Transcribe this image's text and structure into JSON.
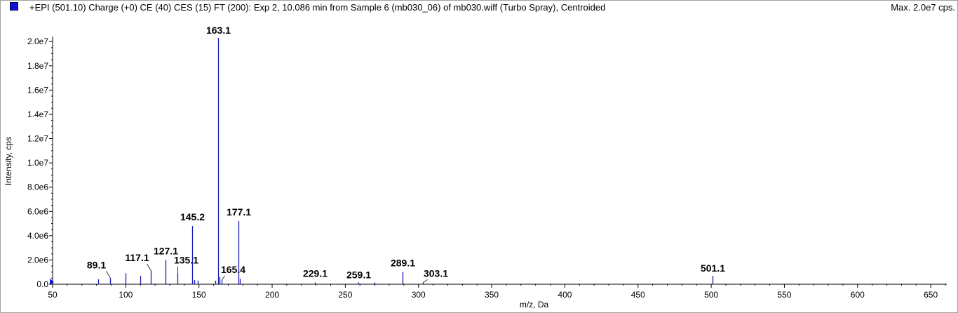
{
  "header": {
    "title": "+EPI (501.10) Charge (+0) CE (40) CES (15) FT (200): Exp 2, 10.086 min from Sample 6 (mb030_06) of mb030.wiff (Turbo Spray), Centroided",
    "max": "Max. 2.0e7 cps."
  },
  "colors": {
    "series": "#1a1ab8",
    "axis": "#000000",
    "frame": "#a0a0a0"
  },
  "chart_data": {
    "type": "bar",
    "xlabel": "m/z, Da",
    "ylabel": "Intensity, cps",
    "xlim": [
      50,
      660
    ],
    "ylim": [
      0,
      20300000
    ],
    "x_ticks": [
      50,
      100,
      150,
      200,
      250,
      300,
      350,
      400,
      450,
      500,
      550,
      600,
      650
    ],
    "y_ticks": [
      {
        "value": 0,
        "label": "0.0"
      },
      {
        "value": 2000000,
        "label": "2.0e6"
      },
      {
        "value": 4000000,
        "label": "4.0e6"
      },
      {
        "value": 6000000,
        "label": "6.0e6"
      },
      {
        "value": 8000000,
        "label": "8.0e6"
      },
      {
        "value": 10000000,
        "label": "1.0e7"
      },
      {
        "value": 12000000,
        "label": "1.2e7"
      },
      {
        "value": 14000000,
        "label": "1.4e7"
      },
      {
        "value": 16000000,
        "label": "1.6e7"
      },
      {
        "value": 18000000,
        "label": "1.8e7"
      },
      {
        "value": 20000000,
        "label": "2.0e7"
      }
    ],
    "peaks": [
      {
        "x": 81.0,
        "y": 400000
      },
      {
        "x": 89.1,
        "y": 500000,
        "label": "89.1"
      },
      {
        "x": 100.0,
        "y": 900000
      },
      {
        "x": 110.0,
        "y": 700000
      },
      {
        "x": 117.1,
        "y": 1100000,
        "label": "117.1"
      },
      {
        "x": 127.1,
        "y": 2000000,
        "label": "127.1"
      },
      {
        "x": 135.1,
        "y": 900000,
        "label": "135.1"
      },
      {
        "x": 145.2,
        "y": 4800000,
        "label": "145.2"
      },
      {
        "x": 147.0,
        "y": 350000
      },
      {
        "x": 149.0,
        "y": 300000
      },
      {
        "x": 161.0,
        "y": 300000
      },
      {
        "x": 163.1,
        "y": 20300000,
        "label": "163.1"
      },
      {
        "x": 164.0,
        "y": 600000
      },
      {
        "x": 165.4,
        "y": 350000,
        "label": "165.4"
      },
      {
        "x": 177.1,
        "y": 5200000,
        "label": "177.1"
      },
      {
        "x": 178.0,
        "y": 450000
      },
      {
        "x": 229.1,
        "y": 150000,
        "label": "229.1"
      },
      {
        "x": 259.1,
        "y": 150000,
        "label": "259.1"
      },
      {
        "x": 270.0,
        "y": 150000
      },
      {
        "x": 289.1,
        "y": 1000000,
        "label": "289.1"
      },
      {
        "x": 303.1,
        "y": 150000,
        "label": "303.1"
      },
      {
        "x": 501.1,
        "y": 700000,
        "label": "501.1"
      }
    ],
    "grid": false,
    "legend": "top-left swatch"
  }
}
